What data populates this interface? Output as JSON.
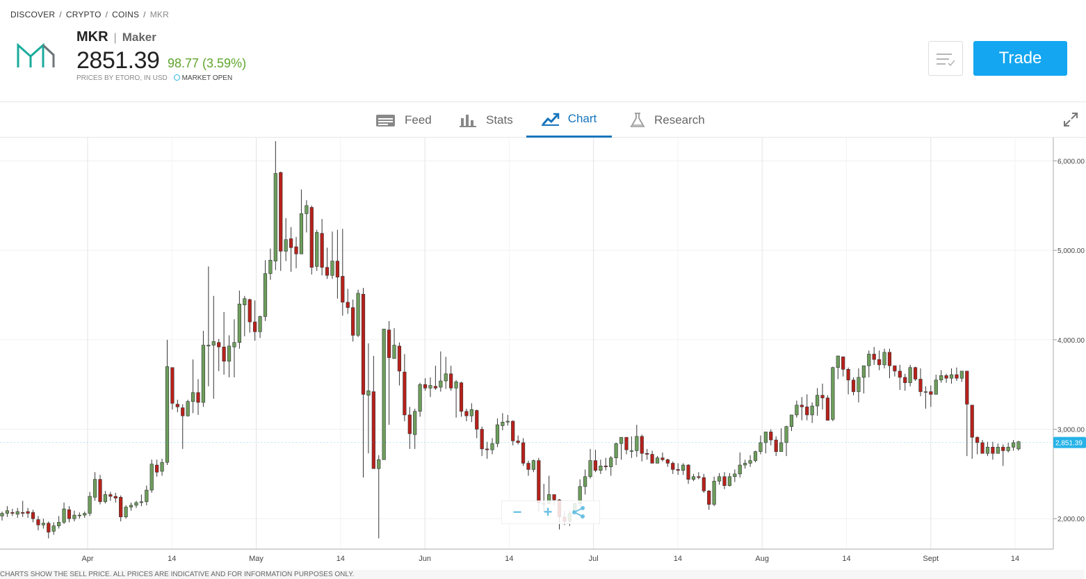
{
  "breadcrumb": {
    "discover": "DISCOVER",
    "crypto": "CRYPTO",
    "coins": "COINS",
    "current": "MKR"
  },
  "instrument": {
    "symbol": "MKR",
    "name": "Maker",
    "price": "2851.39",
    "change": "98.77 (3.59%)",
    "prices_note": "PRICES BY ETORO, IN USD",
    "market_status": "MARKET OPEN",
    "brand_color": "#1aab9b",
    "change_color": "#5ea52c"
  },
  "actions": {
    "trade_label": "Trade",
    "watchlist_icon": "watchlist-icon"
  },
  "tabs": [
    {
      "label": "Feed",
      "icon": "feed-icon"
    },
    {
      "label": "Stats",
      "icon": "stats-icon"
    },
    {
      "label": "Chart",
      "icon": "chart-icon",
      "active": true
    },
    {
      "label": "Research",
      "icon": "research-icon"
    }
  ],
  "footer_note": "CHARTS SHOW THE SELL PRICE. ALL PRICES ARE INDICATIVE AND FOR INFORMATION PURPOSES ONLY.",
  "chart_data": {
    "type": "candlestick",
    "y_ticks": [
      "6,000.00",
      "5,000.00",
      "4,000.00",
      "3,000.00",
      "2,000.00"
    ],
    "y_tick_values": [
      6000,
      5000,
      4000,
      3000,
      2000
    ],
    "ylim": [
      1660,
      6260
    ],
    "x_ticks": [
      "Apr",
      "14",
      "May",
      "14",
      "Jun",
      "14",
      "Jul",
      "14",
      "Aug",
      "14",
      "Sept",
      "14"
    ],
    "current_price_label": "2,851.39",
    "current_price": 2851.39,
    "up_color": "#6d9e5c",
    "down_color": "#b8211b",
    "grid": true,
    "candles": [
      [
        2030,
        2060,
        2080,
        1980
      ],
      [
        2060,
        2090,
        2140,
        2020
      ],
      [
        2070,
        2060,
        2110,
        2030
      ],
      [
        2050,
        2080,
        2120,
        2010
      ],
      [
        2070,
        2060,
        2200,
        2020
      ],
      [
        2080,
        2060,
        2120,
        2010
      ],
      [
        2070,
        2000,
        2100,
        1960
      ],
      [
        1990,
        1930,
        2030,
        1870
      ],
      [
        1930,
        1950,
        2000,
        1890
      ],
      [
        1950,
        1850,
        1970,
        1780
      ],
      [
        1860,
        1920,
        1960,
        1820
      ],
      [
        1920,
        1960,
        2030,
        1890
      ],
      [
        1960,
        2110,
        2180,
        1940
      ],
      [
        2100,
        2000,
        2140,
        1960
      ],
      [
        2000,
        2040,
        2090,
        1970
      ],
      [
        2040,
        2040,
        2070,
        2000
      ],
      [
        2040,
        2060,
        2080,
        2010
      ],
      [
        2060,
        2250,
        2300,
        2030
      ],
      [
        2240,
        2440,
        2520,
        2200
      ],
      [
        2440,
        2190,
        2490,
        2160
      ],
      [
        2190,
        2270,
        2310,
        2170
      ],
      [
        2270,
        2250,
        2300,
        2200
      ],
      [
        2250,
        2230,
        2290,
        2180
      ],
      [
        2240,
        2020,
        2260,
        1970
      ],
      [
        2020,
        2130,
        2150,
        2000
      ],
      [
        2130,
        2150,
        2180,
        2090
      ],
      [
        2150,
        2180,
        2200,
        2120
      ],
      [
        2180,
        2190,
        2270,
        2140
      ],
      [
        2190,
        2320,
        2370,
        2150
      ],
      [
        2320,
        2610,
        2660,
        2290
      ],
      [
        2600,
        2520,
        2660,
        2470
      ],
      [
        2530,
        2630,
        2670,
        2480
      ],
      [
        2630,
        3700,
        4000,
        2600
      ],
      [
        3690,
        3290,
        3690,
        3220
      ],
      [
        3280,
        3250,
        3330,
        3190
      ],
      [
        3240,
        3150,
        3280,
        2780
      ],
      [
        3150,
        3310,
        3330,
        3140
      ],
      [
        3310,
        3410,
        3780,
        3180
      ],
      [
        3410,
        3300,
        3560,
        3160
      ],
      [
        3300,
        3940,
        4100,
        3250
      ],
      [
        3930,
        3940,
        4820,
        3480
      ],
      [
        3940,
        3980,
        4490,
        3340
      ],
      [
        3970,
        3920,
        4010,
        3650
      ],
      [
        3920,
        3760,
        4310,
        3610
      ],
      [
        3760,
        3930,
        4050,
        3580
      ],
      [
        3920,
        3970,
        4230,
        3580
      ],
      [
        3970,
        4400,
        4550,
        3900
      ],
      [
        4390,
        4460,
        4490,
        4040
      ],
      [
        4450,
        4200,
        4460,
        4080
      ],
      [
        4200,
        4090,
        4440,
        3990
      ],
      [
        4090,
        4260,
        4270,
        4020
      ],
      [
        4260,
        4740,
        4890,
        4210
      ],
      [
        4740,
        4890,
        5020,
        4670
      ],
      [
        4880,
        5860,
        6220,
        4780
      ],
      [
        5870,
        4990,
        5880,
        4770
      ],
      [
        4990,
        5120,
        5360,
        4880
      ],
      [
        5130,
        5030,
        5260,
        4760
      ],
      [
        5040,
        4960,
        5150,
        4800
      ],
      [
        4960,
        5410,
        5680,
        5070
      ],
      [
        5410,
        5500,
        5560,
        5200
      ],
      [
        5480,
        4810,
        5500,
        4730
      ],
      [
        4820,
        5200,
        5230,
        4770
      ],
      [
        5190,
        4810,
        5350,
        4720
      ],
      [
        4810,
        4720,
        5030,
        4680
      ],
      [
        4720,
        4880,
        5210,
        4680
      ],
      [
        4880,
        4700,
        5230,
        4460
      ],
      [
        4710,
        4420,
        5240,
        4270
      ],
      [
        4420,
        4360,
        4570,
        4290
      ],
      [
        4360,
        4050,
        4450,
        3980
      ],
      [
        4050,
        4520,
        4560,
        4030
      ],
      [
        4510,
        3390,
        4580,
        2460
      ],
      [
        3380,
        3430,
        3960,
        2730
      ],
      [
        3420,
        2560,
        3820,
        2660
      ],
      [
        2560,
        2660,
        2710,
        1780
      ],
      [
        2660,
        4120,
        4120,
        2660
      ],
      [
        4110,
        3800,
        4210,
        3050
      ],
      [
        3790,
        3940,
        4130,
        3790
      ],
      [
        3930,
        3650,
        3970,
        3490
      ],
      [
        3640,
        3160,
        3840,
        3090
      ],
      [
        3160,
        2950,
        3250,
        2780
      ],
      [
        2940,
        3200,
        3230,
        2780
      ],
      [
        3200,
        3500,
        3520,
        3140
      ],
      [
        3500,
        3460,
        3570,
        3430
      ],
      [
        3460,
        3490,
        3580,
        3360
      ],
      [
        3480,
        3460,
        3710,
        3440
      ],
      [
        3470,
        3540,
        3870,
        3420
      ],
      [
        3540,
        3620,
        3810,
        3450
      ],
      [
        3620,
        3460,
        3710,
        3430
      ],
      [
        3460,
        3530,
        3550,
        3130
      ],
      [
        3520,
        3200,
        3530,
        3140
      ],
      [
        3200,
        3150,
        3230,
        3090
      ],
      [
        3150,
        3220,
        3290,
        3080
      ],
      [
        3210,
        3000,
        3220,
        2900
      ],
      [
        3000,
        2780,
        3030,
        2700
      ],
      [
        2780,
        2770,
        2860,
        2670
      ],
      [
        2770,
        2840,
        2900,
        2720
      ],
      [
        2840,
        3050,
        3120,
        2800
      ],
      [
        3040,
        3080,
        3180,
        2990
      ],
      [
        3080,
        3090,
        3160,
        3040
      ],
      [
        3090,
        2870,
        3100,
        2820
      ],
      [
        2870,
        2850,
        2930,
        2830
      ],
      [
        2850,
        2620,
        2900,
        2590
      ],
      [
        2620,
        2550,
        2650,
        2480
      ],
      [
        2550,
        2650,
        2660,
        2520
      ],
      [
        2650,
        2180,
        2680,
        2080
      ],
      [
        2170,
        2170,
        2390,
        2080
      ],
      [
        2170,
        2270,
        2480,
        2170
      ],
      [
        2270,
        2210,
        2250,
        2150
      ],
      [
        2210,
        2020,
        2220,
        1880
      ],
      [
        2020,
        1970,
        2090,
        1930
      ],
      [
        1970,
        2060,
        2090,
        1920
      ],
      [
        2060,
        2170,
        2170,
        2070
      ],
      [
        2170,
        2360,
        2440,
        2140
      ],
      [
        2360,
        2470,
        2550,
        2270
      ],
      [
        2470,
        2650,
        2780,
        2450
      ],
      [
        2650,
        2540,
        2770,
        2520
      ],
      [
        2540,
        2590,
        2660,
        2500
      ],
      [
        2590,
        2580,
        2680,
        2540
      ],
      [
        2580,
        2680,
        2700,
        2480
      ],
      [
        2680,
        2840,
        2850,
        2600
      ],
      [
        2840,
        2910,
        2850,
        2660
      ],
      [
        2910,
        2770,
        2900,
        2720
      ],
      [
        2760,
        2760,
        2920,
        2680
      ],
      [
        2760,
        2920,
        3050,
        2690
      ],
      [
        2920,
        2730,
        2940,
        2640
      ],
      [
        2730,
        2720,
        2780,
        2660
      ],
      [
        2720,
        2620,
        2760,
        2670
      ],
      [
        2620,
        2680,
        2700,
        2620
      ],
      [
        2680,
        2660,
        2740,
        2640
      ],
      [
        2660,
        2620,
        2670,
        2580
      ],
      [
        2620,
        2550,
        2640,
        2500
      ],
      [
        2550,
        2540,
        2620,
        2490
      ],
      [
        2540,
        2600,
        2620,
        2490
      ],
      [
        2600,
        2440,
        2610,
        2390
      ],
      [
        2440,
        2470,
        2500,
        2420
      ],
      [
        2470,
        2460,
        2520,
        2440
      ],
      [
        2460,
        2310,
        2500,
        2290
      ],
      [
        2310,
        2160,
        2320,
        2100
      ],
      [
        2160,
        2420,
        2470,
        2140
      ],
      [
        2420,
        2470,
        2510,
        2380
      ],
      [
        2470,
        2370,
        2520,
        2330
      ],
      [
        2370,
        2470,
        2510,
        2360
      ],
      [
        2470,
        2500,
        2550,
        2410
      ],
      [
        2500,
        2600,
        2740,
        2460
      ],
      [
        2600,
        2620,
        2660,
        2560
      ],
      [
        2620,
        2650,
        2710,
        2580
      ],
      [
        2650,
        2750,
        2760,
        2630
      ],
      [
        2750,
        2850,
        2930,
        2720
      ],
      [
        2850,
        2970,
        2950,
        2730
      ],
      [
        2970,
        2880,
        3000,
        2820
      ],
      [
        2880,
        2750,
        2920,
        2700
      ],
      [
        2750,
        2850,
        3010,
        2810
      ],
      [
        2850,
        3030,
        3040,
        2700
      ],
      [
        3030,
        3160,
        3160,
        2980
      ],
      [
        3160,
        3270,
        3320,
        3130
      ],
      [
        3270,
        3250,
        3360,
        3100
      ],
      [
        3250,
        3160,
        3390,
        3100
      ],
      [
        3160,
        3260,
        3300,
        3070
      ],
      [
        3260,
        3380,
        3460,
        3150
      ],
      [
        3380,
        3350,
        3510,
        3220
      ],
      [
        3350,
        3100,
        3380,
        3170
      ],
      [
        3110,
        3690,
        3700,
        3090
      ],
      [
        3690,
        3820,
        3810,
        3560
      ],
      [
        3810,
        3670,
        3790,
        3590
      ],
      [
        3670,
        3550,
        3690,
        3390
      ],
      [
        3550,
        3420,
        3580,
        3380
      ],
      [
        3420,
        3580,
        3680,
        3300
      ],
      [
        3580,
        3710,
        3690,
        3400
      ],
      [
        3710,
        3840,
        3880,
        3580
      ],
      [
        3840,
        3780,
        3920,
        3720
      ],
      [
        3780,
        3720,
        3880,
        3660
      ],
      [
        3720,
        3860,
        3900,
        3680
      ],
      [
        3860,
        3710,
        3900,
        3570
      ],
      [
        3710,
        3650,
        3700,
        3590
      ],
      [
        3650,
        3580,
        3720,
        3440
      ],
      [
        3580,
        3520,
        3620,
        3430
      ],
      [
        3520,
        3690,
        3720,
        3480
      ],
      [
        3690,
        3560,
        3700,
        3540
      ],
      [
        3560,
        3420,
        3680,
        3370
      ],
      [
        3420,
        3420,
        3480,
        3230
      ],
      [
        3420,
        3390,
        3490,
        3250
      ],
      [
        3390,
        3550,
        3610,
        3390
      ],
      [
        3550,
        3600,
        3660,
        3520
      ],
      [
        3600,
        3570,
        3620,
        3520
      ],
      [
        3570,
        3610,
        3680,
        3510
      ],
      [
        3610,
        3570,
        3690,
        3540
      ],
      [
        3570,
        3650,
        3640,
        3530
      ],
      [
        3650,
        3280,
        3600,
        2700
      ],
      [
        3270,
        2910,
        3100,
        2670
      ],
      [
        2910,
        2850,
        2920,
        2720
      ],
      [
        2850,
        2730,
        2880,
        2740
      ],
      [
        2730,
        2800,
        2860,
        2700
      ],
      [
        2800,
        2730,
        2860,
        2660
      ],
      [
        2730,
        2800,
        2840,
        2730
      ],
      [
        2800,
        2760,
        2830,
        2590
      ],
      [
        2760,
        2800,
        2850,
        2740
      ],
      [
        2800,
        2850,
        2880,
        2760
      ],
      [
        2780,
        2860,
        2870,
        2760
      ]
    ]
  }
}
